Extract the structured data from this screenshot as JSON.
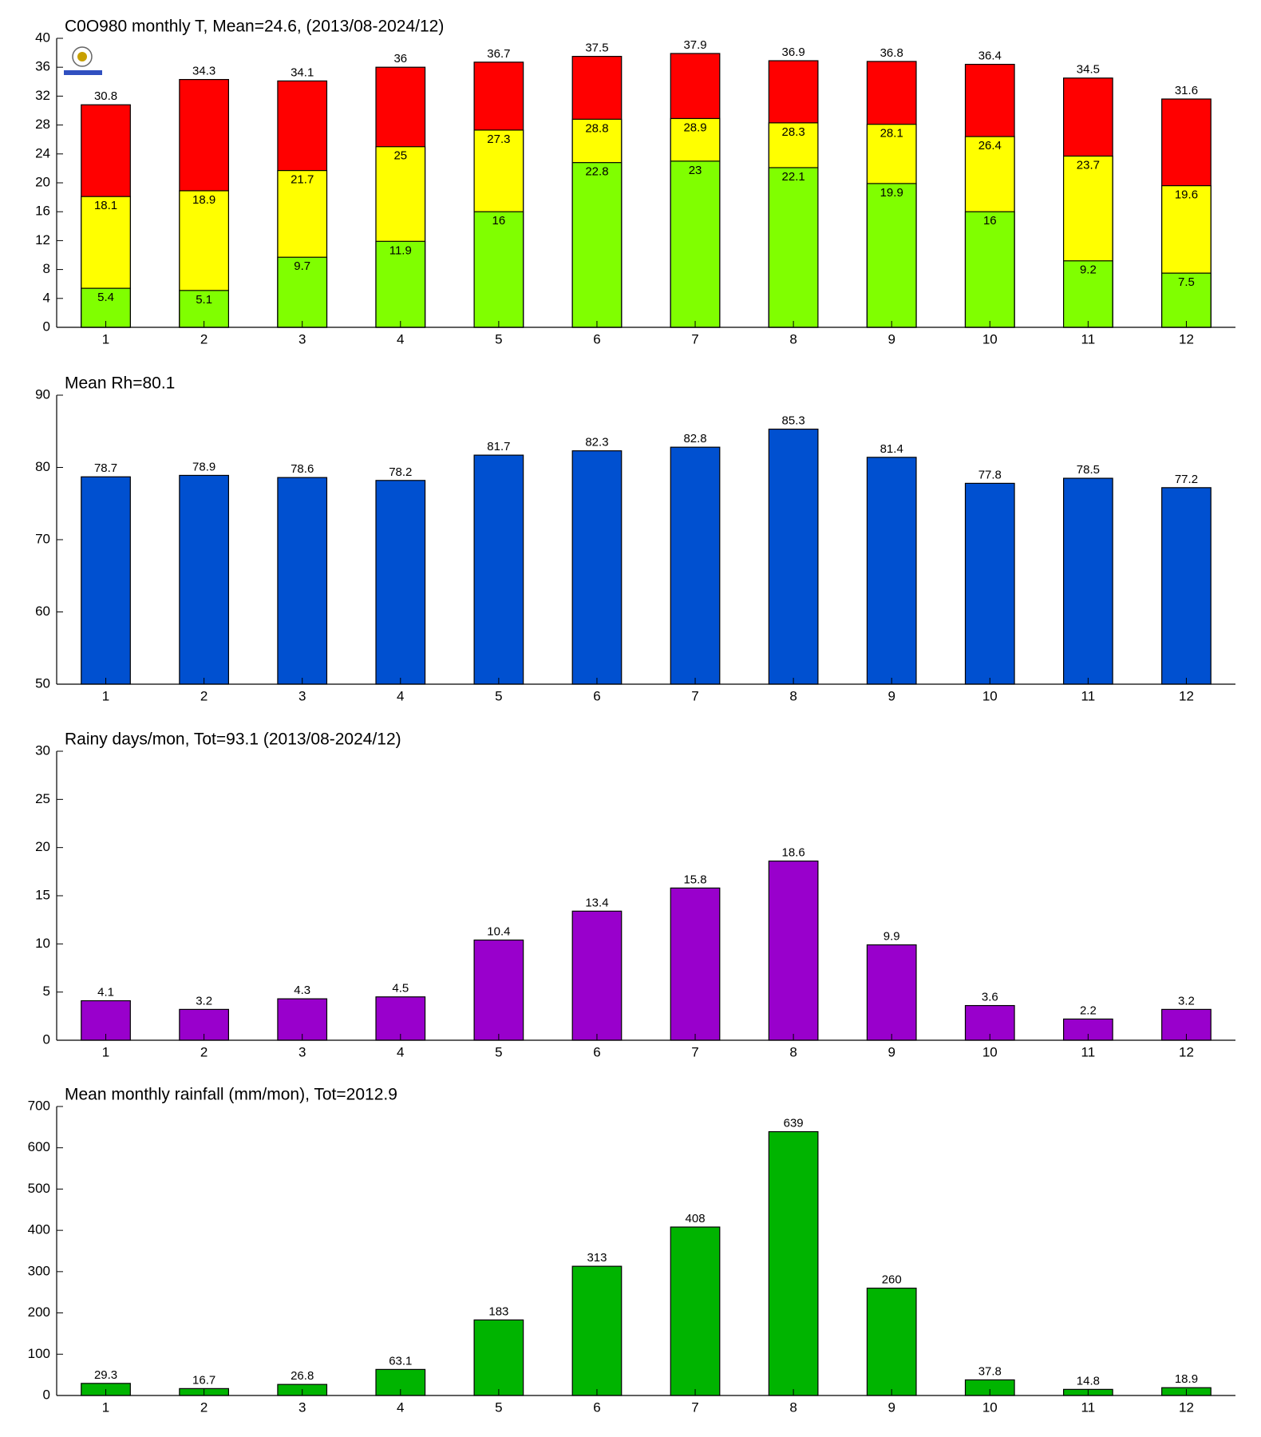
{
  "chart_data": [
    {
      "type": "bar",
      "title": "C0O980 monthly T, Mean=24.6, (2013/08-2024/12)",
      "categories": [
        1,
        2,
        3,
        4,
        5,
        6,
        7,
        8,
        9,
        10,
        11,
        12
      ],
      "series": [
        {
          "color": "#ff0000",
          "label_position": "above",
          "values": [
            30.8,
            34.3,
            34.1,
            36,
            36.7,
            37.5,
            37.9,
            36.9,
            36.8,
            36.4,
            34.5,
            31.6
          ]
        },
        {
          "color": "#ffff00",
          "label_position": "inside",
          "values": [
            18.1,
            18.9,
            21.7,
            25,
            27.3,
            28.8,
            28.9,
            28.3,
            28.1,
            26.4,
            23.7,
            19.6
          ]
        },
        {
          "color": "#80ff00",
          "label_position": "inside",
          "values": [
            5.4,
            5.1,
            9.7,
            11.9,
            16,
            22.8,
            23,
            22.1,
            19.9,
            16,
            9.2,
            7.5
          ]
        }
      ],
      "ylim": [
        0,
        40
      ],
      "yticks": [
        0,
        4,
        8,
        12,
        16,
        20,
        24,
        28,
        32,
        36,
        40
      ]
    },
    {
      "type": "bar",
      "title": "Mean Rh=80.1",
      "categories": [
        1,
        2,
        3,
        4,
        5,
        6,
        7,
        8,
        9,
        10,
        11,
        12
      ],
      "series": [
        {
          "color": "#0050d0",
          "label_position": "above",
          "values": [
            78.7,
            78.9,
            78.6,
            78.2,
            81.7,
            82.3,
            82.8,
            85.3,
            81.4,
            77.8,
            78.5,
            77.2
          ]
        }
      ],
      "ylim": [
        50,
        90
      ],
      "yticks": [
        50,
        60,
        70,
        80,
        90
      ]
    },
    {
      "type": "bar",
      "title": "Rainy days/mon, Tot=93.1 (2013/08-2024/12)",
      "categories": [
        1,
        2,
        3,
        4,
        5,
        6,
        7,
        8,
        9,
        10,
        11,
        12
      ],
      "series": [
        {
          "color": "#9900cc",
          "label_position": "above",
          "values": [
            4.1,
            3.2,
            4.3,
            4.5,
            10.4,
            13.4,
            15.8,
            18.6,
            9.9,
            3.6,
            2.2,
            3.2
          ]
        }
      ],
      "ylim": [
        0,
        30
      ],
      "yticks": [
        0,
        5,
        10,
        15,
        20,
        25,
        30
      ]
    },
    {
      "type": "bar",
      "title": "Mean monthly rainfall (mm/mon), Tot=2012.9",
      "categories": [
        1,
        2,
        3,
        4,
        5,
        6,
        7,
        8,
        9,
        10,
        11,
        12
      ],
      "series": [
        {
          "color": "#00b400",
          "label_position": "above",
          "values": [
            29.3,
            16.7,
            26.8,
            63.1,
            183,
            313,
            408,
            639,
            260,
            37.8,
            14.8,
            18.9
          ]
        }
      ],
      "ylim": [
        0,
        700
      ],
      "yticks": [
        0,
        100,
        200,
        300,
        400,
        500,
        600,
        700
      ]
    }
  ]
}
